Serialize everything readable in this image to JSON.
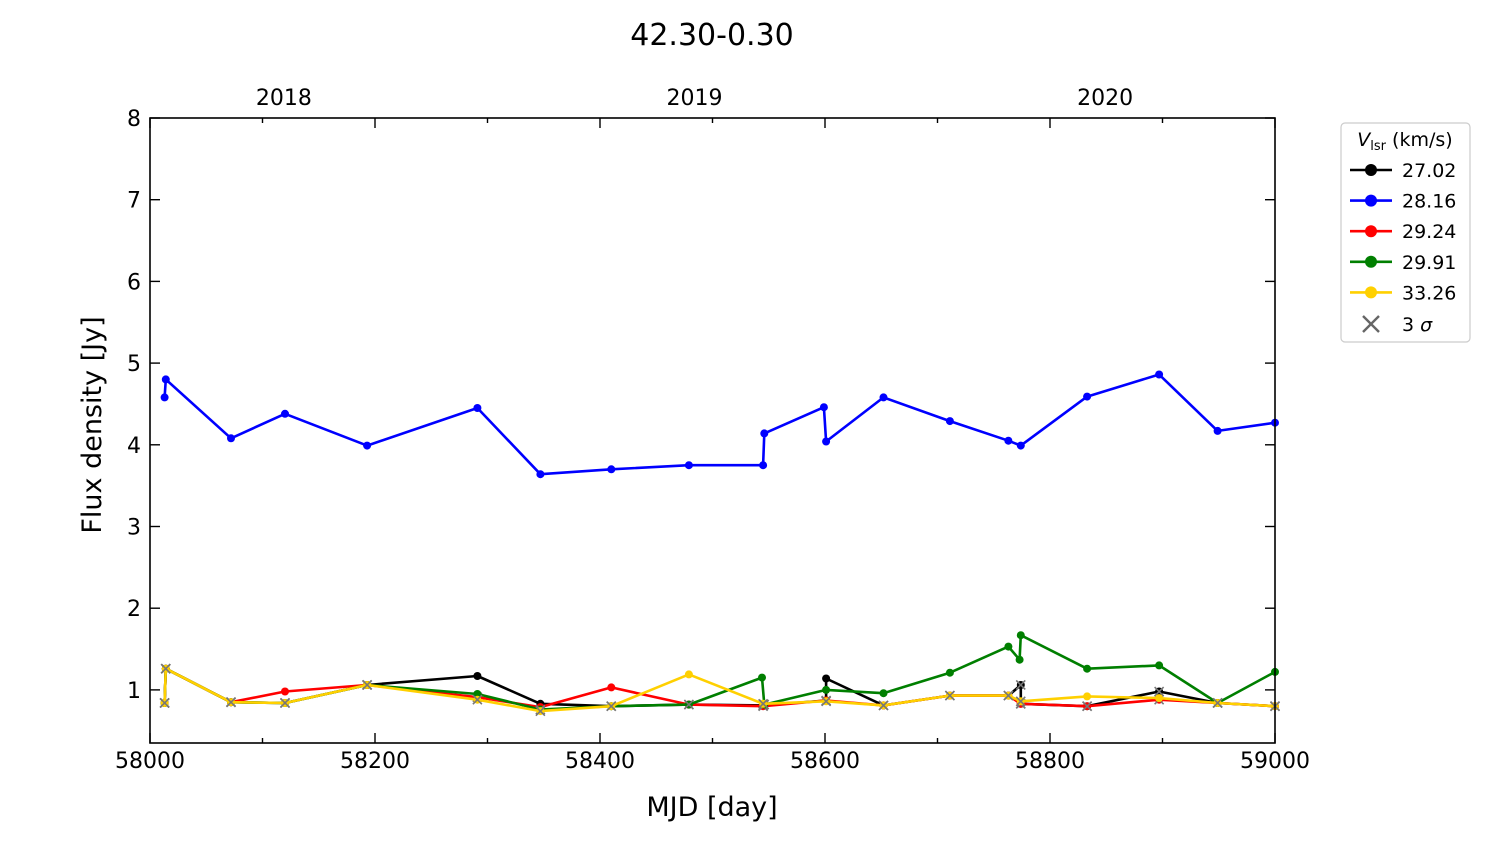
{
  "chart_data": {
    "type": "line",
    "title": "42.30-0.30",
    "xlabel": "MJD [day]",
    "ylabel": "Flux density [Jy]",
    "xlim": [
      58000,
      59000
    ],
    "ylim": [
      0.35,
      8
    ],
    "xticks": [
      58000,
      58200,
      58400,
      58600,
      58800,
      59000
    ],
    "yticks": [
      1,
      2,
      3,
      4,
      5,
      6,
      7,
      8
    ],
    "top_axis": {
      "ticks": [
        {
          "x": 58119,
          "label": "2018"
        },
        {
          "x": 58484,
          "label": "2019"
        },
        {
          "x": 58849,
          "label": "2020"
        }
      ]
    },
    "legend": {
      "position": "right-outside-top",
      "title_prefix": "V",
      "title_sub": "lsr",
      "title_suffix": " (km/s)",
      "sigma_label": "3 σ"
    },
    "grid": false,
    "series": [
      {
        "name": "27.02",
        "color": "#000000",
        "points": [
          [
            58013,
            0.84
          ],
          [
            58014,
            1.26
          ],
          [
            58072,
            0.85
          ],
          [
            58120,
            0.84
          ],
          [
            58193,
            1.06
          ],
          [
            58291,
            1.17
          ],
          [
            58347,
            0.83
          ],
          [
            58410,
            0.8
          ],
          [
            58479,
            0.82
          ],
          [
            58545,
            0.81
          ],
          [
            58601,
            0.87
          ],
          [
            58601,
            1.14
          ],
          [
            58652,
            0.81
          ],
          [
            58711,
            0.93
          ],
          [
            58763,
            0.93
          ],
          [
            58774,
            1.06
          ],
          [
            58774,
            0.83
          ],
          [
            58833,
            0.8
          ],
          [
            58897,
            0.98
          ],
          [
            58949,
            0.84
          ],
          [
            59000,
            0.8
          ]
        ],
        "upper_limits": [
          0,
          1,
          2,
          3,
          4,
          9,
          15,
          16,
          17,
          18,
          19,
          20
        ]
      },
      {
        "name": "28.16",
        "color": "#0000ff",
        "points": [
          [
            58013,
            4.58
          ],
          [
            58014,
            4.8
          ],
          [
            58072,
            4.08
          ],
          [
            58120,
            4.38
          ],
          [
            58193,
            3.99
          ],
          [
            58291,
            4.45
          ],
          [
            58347,
            3.64
          ],
          [
            58410,
            3.7
          ],
          [
            58479,
            3.75
          ],
          [
            58545,
            3.75
          ],
          [
            58546,
            4.14
          ],
          [
            58599,
            4.46
          ],
          [
            58601,
            4.04
          ],
          [
            58652,
            4.58
          ],
          [
            58711,
            4.29
          ],
          [
            58763,
            4.05
          ],
          [
            58774,
            3.99
          ],
          [
            58833,
            4.59
          ],
          [
            58897,
            4.86
          ],
          [
            58949,
            4.17
          ],
          [
            59000,
            4.27
          ]
        ],
        "upper_limits": []
      },
      {
        "name": "29.24",
        "color": "#ff0000",
        "points": [
          [
            58013,
            0.84
          ],
          [
            58014,
            1.26
          ],
          [
            58072,
            0.85
          ],
          [
            58120,
            0.98
          ],
          [
            58193,
            1.06
          ],
          [
            58291,
            0.91
          ],
          [
            58347,
            0.79
          ],
          [
            58410,
            1.03
          ],
          [
            58479,
            0.82
          ],
          [
            58545,
            0.8
          ],
          [
            58601,
            0.87
          ],
          [
            58652,
            0.81
          ],
          [
            58711,
            0.93
          ],
          [
            58763,
            0.93
          ],
          [
            58774,
            0.83
          ],
          [
            58833,
            0.8
          ],
          [
            58897,
            0.88
          ],
          [
            58949,
            0.84
          ],
          [
            59000,
            0.8
          ]
        ],
        "upper_limits": [
          0,
          1,
          2,
          4,
          5,
          8,
          9,
          10,
          11,
          12,
          13,
          14,
          15,
          16,
          17,
          18
        ]
      },
      {
        "name": "29.91",
        "color": "#007f00",
        "points": [
          [
            58013,
            0.84
          ],
          [
            58014,
            1.26
          ],
          [
            58072,
            0.85
          ],
          [
            58120,
            0.84
          ],
          [
            58193,
            1.06
          ],
          [
            58291,
            0.95
          ],
          [
            58347,
            0.76
          ],
          [
            58410,
            0.8
          ],
          [
            58479,
            0.82
          ],
          [
            58544,
            1.15
          ],
          [
            58546,
            0.82
          ],
          [
            58601,
            1.0
          ],
          [
            58652,
            0.96
          ],
          [
            58711,
            1.21
          ],
          [
            58763,
            1.53
          ],
          [
            58773,
            1.37
          ],
          [
            58774,
            1.67
          ],
          [
            58833,
            1.26
          ],
          [
            58897,
            1.3
          ],
          [
            58949,
            0.84
          ],
          [
            59000,
            1.22
          ]
        ],
        "upper_limits": [
          0,
          1,
          2,
          3,
          4,
          6,
          7,
          8,
          10,
          19
        ]
      },
      {
        "name": "33.26",
        "color": "#ffd000",
        "points": [
          [
            58013,
            0.84
          ],
          [
            58014,
            1.26
          ],
          [
            58072,
            0.85
          ],
          [
            58120,
            0.84
          ],
          [
            58193,
            1.06
          ],
          [
            58291,
            0.88
          ],
          [
            58347,
            0.74
          ],
          [
            58410,
            0.8
          ],
          [
            58479,
            1.19
          ],
          [
            58545,
            0.83
          ],
          [
            58601,
            0.86
          ],
          [
            58652,
            0.81
          ],
          [
            58711,
            0.93
          ],
          [
            58763,
            0.93
          ],
          [
            58774,
            0.86
          ],
          [
            58833,
            0.92
          ],
          [
            58897,
            0.9
          ],
          [
            58949,
            0.84
          ],
          [
            59000,
            0.8
          ]
        ],
        "upper_limits": [
          0,
          1,
          2,
          3,
          4,
          5,
          6,
          7,
          9,
          10,
          11,
          12,
          13,
          14,
          17,
          18
        ]
      }
    ]
  }
}
